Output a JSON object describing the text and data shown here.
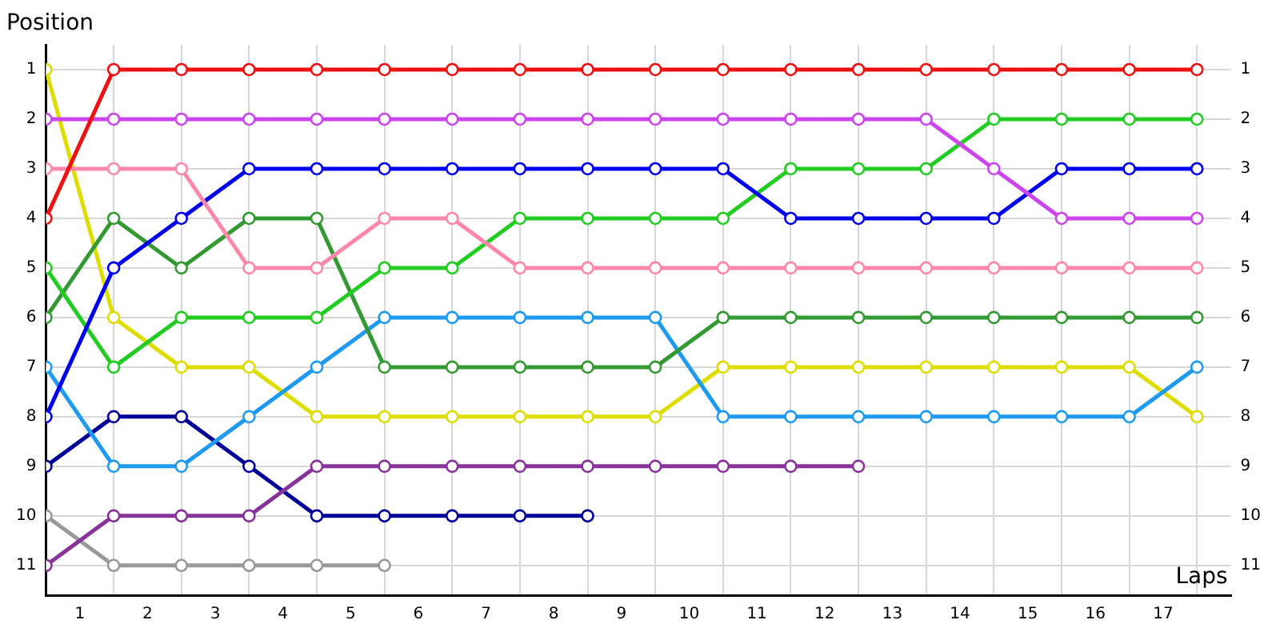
{
  "chart_data": {
    "type": "line",
    "xlabel": "Laps",
    "ylabel": "Position",
    "x": [
      0,
      1,
      2,
      3,
      4,
      5,
      6,
      7,
      8,
      9,
      10,
      11,
      12,
      13,
      14,
      15,
      16,
      17
    ],
    "xlim": [
      0,
      17.5
    ],
    "xticks": [
      {
        "value": 0,
        "label": null
      },
      {
        "value": 0.5,
        "label": "1"
      },
      {
        "value": 1,
        "label": null
      },
      {
        "value": 1.5,
        "label": "2"
      },
      {
        "value": 2,
        "label": null
      },
      {
        "value": 2.5,
        "label": "3"
      },
      {
        "value": 3,
        "label": null
      },
      {
        "value": 3.5,
        "label": "4"
      },
      {
        "value": 4,
        "label": null
      },
      {
        "value": 4.5,
        "label": "5"
      },
      {
        "value": 5,
        "label": null
      },
      {
        "value": 5.5,
        "label": "6"
      },
      {
        "value": 6,
        "label": null
      },
      {
        "value": 6.5,
        "label": "7"
      },
      {
        "value": 7,
        "label": null
      },
      {
        "value": 7.5,
        "label": "8"
      },
      {
        "value": 8,
        "label": null
      },
      {
        "value": 8.5,
        "label": "9"
      },
      {
        "value": 9,
        "label": null
      },
      {
        "value": 9.5,
        "label": "10"
      },
      {
        "value": 10,
        "label": null
      },
      {
        "value": 10.5,
        "label": "11"
      },
      {
        "value": 11,
        "label": null
      },
      {
        "value": 11.5,
        "label": "12"
      },
      {
        "value": 12,
        "label": null
      },
      {
        "value": 12.5,
        "label": "13"
      },
      {
        "value": 13,
        "label": null
      },
      {
        "value": 13.5,
        "label": "14"
      },
      {
        "value": 14,
        "label": null
      },
      {
        "value": 14.5,
        "label": "15"
      },
      {
        "value": 15,
        "label": null
      },
      {
        "value": 15.5,
        "label": "16"
      },
      {
        "value": 16,
        "label": null
      },
      {
        "value": 16.5,
        "label": "17"
      },
      {
        "value": 17,
        "label": null
      }
    ],
    "ylim": [
      11.6,
      0.5
    ],
    "yticks": [
      1,
      2,
      3,
      4,
      5,
      6,
      7,
      8,
      9,
      10,
      11
    ],
    "y2lim": [
      11.6,
      0.5
    ],
    "y2ticks": [
      1,
      2,
      3,
      4,
      5,
      6,
      7,
      8,
      9,
      10,
      11
    ],
    "grid": true,
    "legend": false,
    "marker": "circle",
    "line_style": "solid",
    "series": [
      {
        "color": "#ee1111",
        "values": [
          4,
          1,
          1,
          1,
          1,
          1,
          1,
          1,
          1,
          1,
          1,
          1,
          1,
          1,
          1,
          1,
          1,
          1
        ]
      },
      {
        "color": "#cc44ee",
        "values": [
          2,
          2,
          2,
          2,
          2,
          2,
          2,
          2,
          2,
          2,
          2,
          2,
          2,
          2,
          3,
          4,
          4,
          4
        ]
      },
      {
        "color": "#ff88aa",
        "values": [
          3,
          3,
          3,
          5,
          5,
          4,
          4,
          5,
          5,
          5,
          5,
          5,
          5,
          5,
          5,
          5,
          5,
          5
        ]
      },
      {
        "color": "#0000ee",
        "values": [
          8,
          5,
          4,
          3,
          3,
          3,
          3,
          3,
          3,
          3,
          3,
          4,
          4,
          4,
          4,
          3,
          3,
          3
        ]
      },
      {
        "color": "#22cc22",
        "values": [
          5,
          7,
          6,
          6,
          6,
          5,
          5,
          4,
          4,
          4,
          4,
          3,
          3,
          3,
          2,
          2,
          2,
          2
        ]
      },
      {
        "color": "#339933",
        "values": [
          6,
          4,
          5,
          4,
          4,
          7,
          7,
          7,
          7,
          7,
          6,
          6,
          6,
          6,
          6,
          6,
          6,
          6
        ]
      },
      {
        "color": "#1e9bf0",
        "values": [
          7,
          9,
          9,
          8,
          7,
          6,
          6,
          6,
          6,
          6,
          8,
          8,
          8,
          8,
          8,
          8,
          8,
          7
        ]
      },
      {
        "color": "#dddd00",
        "values": [
          1,
          6,
          7,
          7,
          8,
          8,
          8,
          8,
          8,
          8,
          7,
          7,
          7,
          7,
          7,
          7,
          7,
          8
        ]
      },
      {
        "color": "#883399",
        "values": [
          11,
          10,
          10,
          10,
          9,
          9,
          9,
          9,
          9,
          9,
          9,
          9,
          9,
          null,
          null,
          null,
          null,
          null
        ]
      },
      {
        "color": "#000099",
        "values": [
          9,
          8,
          8,
          9,
          10,
          10,
          10,
          10,
          10,
          null,
          null,
          null,
          null,
          null,
          null,
          null,
          null,
          null
        ]
      },
      {
        "color": "#999999",
        "values": [
          10,
          11,
          11,
          11,
          11,
          11,
          null,
          null,
          null,
          null,
          null,
          null,
          null,
          null,
          null,
          null,
          null,
          null
        ]
      }
    ]
  }
}
